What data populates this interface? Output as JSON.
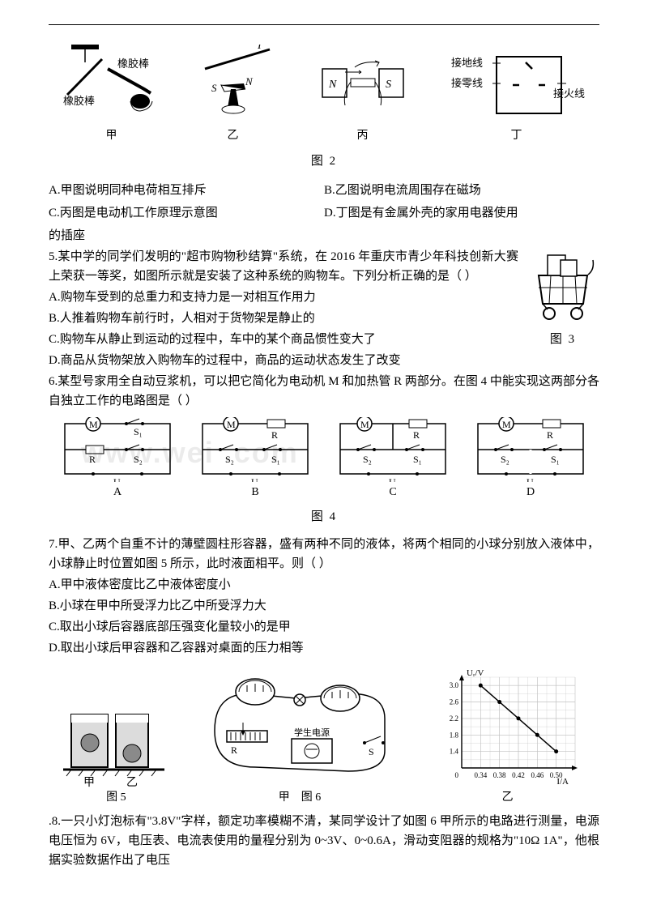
{
  "fig2": {
    "rubber_rod": "橡胶棒",
    "jia": "甲",
    "yi": "乙",
    "bing": "丙",
    "ding": "丁",
    "I": "I",
    "S": "S",
    "N": "N",
    "ground": "接地线",
    "neutral": "接零线",
    "live": "接火线",
    "caption": "图 2"
  },
  "q4": {
    "optA": "A.甲图说明同种电荷相互排斥",
    "optB": "B.乙图说明电流周围存在磁场",
    "optC": "C.丙图是电动机工作原理示意图",
    "optD_prefix": "D.丁图是有金属外壳的家用电器使用",
    "optD_suffix": "的插座"
  },
  "q5": {
    "stem": "5.某中学的同学们发明的\"超市购物秒结算\"系统，在 2016 年重庆市青少年科技创新大赛上荣获一等奖，如图所示就是安装了这种系统的购物车。下列分析正确的是（ ）",
    "optA": "A.购物车受到的总重力和支持力是一对相互作用力",
    "optB": "B.人推着购物车前行时，人相对于货物架是静止的",
    "optC": "C.购物车从静止到运动的过程中，车中的某个商品惯性变大了",
    "optD": "D.商品从货物架放入购物车的过程中，商品的运动状态发生了改变"
  },
  "fig3": {
    "caption": "图 3"
  },
  "q6": {
    "stem": "6.某型号家用全自动豆浆机，可以把它简化为电动机 M 和加热管 R 两部分。在图 4 中能实现这两部分各自独立工作的电路图是（ ）"
  },
  "fig4": {
    "labels": [
      "A",
      "B",
      "C",
      "D"
    ],
    "caption": "图 4",
    "S1": "S₁",
    "S2": "S₂",
    "R": "R",
    "M": "M",
    "U": "U"
  },
  "q7": {
    "stem": "7.甲、乙两个自重不计的薄壁圆柱形容器，盛有两种不同的液体，将两个相同的小球分别放入液体中，小球静止时位置如图 5 所示，此时液面相平。则（ ）",
    "optA": "A.甲中液体密度比乙中液体密度小",
    "optB": "B.小球在甲中所受浮力比乙中所受浮力大",
    "optC": "C.取出小球后容器底部压强变化量较小的是甲",
    "optD": "D.取出小球后甲容器和乙容器对桌面的压力相等"
  },
  "fig5": {
    "jia": "甲",
    "yi": "乙",
    "caption": "图 5"
  },
  "fig6": {
    "jia": "甲",
    "yi": "乙",
    "caption": "图 6",
    "xuesheng": "学生电源",
    "graph": {
      "ylabel": "Uᵣ/V",
      "xlabel": "I/A",
      "xticks": [
        "0.34",
        "0.38",
        "0.42",
        "0.46",
        "0.50"
      ],
      "yticks": [
        "1.4",
        "1.8",
        "2.2",
        "2.6",
        "3.0"
      ],
      "points": [
        [
          0.34,
          3.0
        ],
        [
          0.38,
          2.6
        ],
        [
          0.42,
          2.2
        ],
        [
          0.46,
          1.8
        ],
        [
          0.5,
          1.4
        ]
      ],
      "line_color": "#000000",
      "grid_color": "#c0c0c0",
      "bg_color": "#ffffff",
      "xlim": [
        0.3,
        0.54
      ],
      "ylim": [
        1.0,
        3.2
      ]
    }
  },
  "q8": {
    "stem": ".8.一只小灯泡标有\"3.8V\"字样，额定功率模糊不清，某同学设计了如图 6 甲所示的电路进行测量，电源电压恒为 6V，电压表、电流表使用的量程分别为 0~3V、0~0.6A，滑动变阻器的规格为\"10Ω 1A\"，他根据实验数据作出了电压"
  },
  "watermark": "www.wei           .com"
}
